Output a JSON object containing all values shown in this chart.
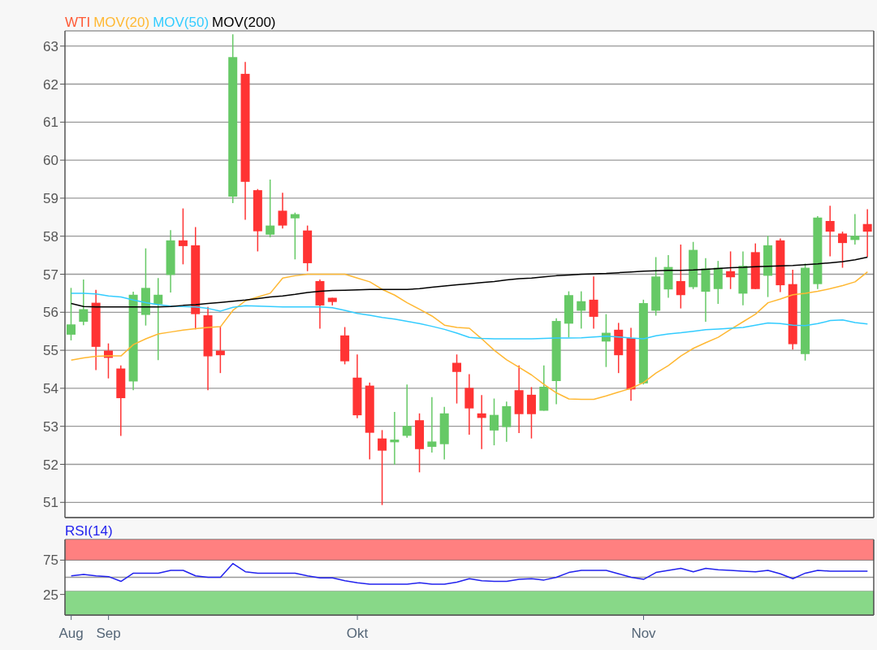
{
  "chart_data": [
    {
      "type": "candlestick",
      "categories": [
        null,
        null,
        null,
        null,
        null,
        null,
        null,
        null,
        null,
        null,
        null,
        null,
        null,
        null,
        null,
        null,
        null,
        null,
        null,
        null,
        null,
        null,
        null,
        null,
        null,
        null,
        null,
        null,
        null,
        null,
        null,
        null,
        null,
        null,
        null,
        null,
        null,
        null,
        null,
        null,
        null,
        null,
        null,
        null,
        null,
        null,
        null,
        null,
        null,
        null,
        null,
        null,
        null,
        null,
        null,
        null,
        null,
        null,
        null,
        null,
        null,
        null,
        null,
        null,
        null
      ],
      "ylim": [
        50.6,
        63.4
      ],
      "yticks": [
        51,
        52,
        53,
        54,
        55,
        56,
        57,
        58,
        59,
        60,
        61,
        62,
        63
      ],
      "grid": "y",
      "legend": "top left",
      "tick_labels": "y",
      "series": [
        {
          "name": "WTI",
          "type": "candlestick",
          "color": "#ff5a36",
          "ohlc": [
            [
              55.41,
              56.64,
              55.26,
              55.68
            ],
            [
              55.75,
              56.86,
              55.66,
              56.08
            ],
            [
              56.25,
              56.59,
              54.48,
              55.09
            ],
            [
              54.99,
              55.18,
              54.26,
              54.8
            ],
            [
              54.52,
              54.6,
              52.75,
              53.74
            ],
            [
              54.18,
              56.54,
              53.95,
              56.46
            ],
            [
              55.93,
              57.68,
              55.65,
              56.64
            ],
            [
              56.21,
              56.9,
              54.74,
              56.46
            ],
            [
              56.98,
              58.16,
              56.52,
              57.89
            ],
            [
              57.89,
              58.73,
              57.26,
              57.74
            ],
            [
              57.76,
              58.24,
              55.55,
              55.95
            ],
            [
              55.92,
              56.14,
              53.95,
              54.84
            ],
            [
              54.99,
              55.63,
              54.4,
              54.87
            ],
            [
              59.04,
              63.31,
              58.87,
              62.71
            ],
            [
              62.27,
              62.58,
              58.43,
              59.43
            ],
            [
              59.21,
              59.24,
              57.6,
              58.13
            ],
            [
              58.04,
              59.49,
              57.97,
              58.28
            ],
            [
              58.67,
              59.14,
              58.2,
              58.28
            ],
            [
              58.47,
              58.62,
              57.39,
              58.58
            ],
            [
              58.15,
              58.28,
              57.08,
              57.29
            ],
            [
              56.82,
              56.86,
              55.57,
              56.18
            ],
            [
              56.38,
              56.38,
              56.18,
              56.27
            ],
            [
              55.39,
              55.61,
              54.63,
              54.71
            ],
            [
              54.28,
              54.89,
              53.21,
              53.29
            ],
            [
              54.07,
              54.15,
              52.13,
              52.83
            ],
            [
              52.68,
              52.9,
              50.93,
              52.36
            ],
            [
              52.58,
              53.38,
              51.99,
              52.65
            ],
            [
              52.75,
              54.1,
              52.7,
              53.01
            ],
            [
              53.16,
              53.34,
              51.79,
              52.4
            ],
            [
              52.46,
              53.77,
              52.31,
              52.6
            ],
            [
              52.53,
              53.51,
              52.13,
              53.34
            ],
            [
              54.67,
              54.89,
              53.6,
              54.43
            ],
            [
              54.01,
              54.37,
              52.78,
              53.47
            ],
            [
              53.34,
              53.82,
              52.4,
              53.22
            ],
            [
              52.89,
              53.73,
              52.5,
              53.3
            ],
            [
              52.98,
              53.65,
              52.59,
              53.53
            ],
            [
              53.95,
              54.6,
              52.82,
              53.32
            ],
            [
              53.83,
              54.03,
              52.68,
              53.32
            ],
            [
              53.41,
              54.6,
              53.41,
              54.04
            ],
            [
              54.19,
              55.84,
              53.58,
              55.77
            ],
            [
              55.7,
              56.55,
              55.34,
              56.45
            ],
            [
              56.04,
              56.55,
              55.57,
              56.29
            ],
            [
              56.33,
              56.94,
              55.57,
              55.88
            ],
            [
              55.23,
              55.95,
              54.56,
              55.46
            ],
            [
              55.54,
              55.72,
              54.4,
              54.87
            ],
            [
              55.32,
              55.59,
              53.67,
              53.97
            ],
            [
              54.13,
              56.33,
              54.1,
              56.24
            ],
            [
              56.04,
              57.45,
              55.91,
              56.94
            ],
            [
              56.6,
              57.5,
              56.38,
              57.19
            ],
            [
              56.82,
              57.78,
              56.1,
              56.45
            ],
            [
              56.66,
              57.85,
              56.61,
              57.64
            ],
            [
              56.54,
              57.42,
              55.75,
              57.15
            ],
            [
              56.61,
              57.35,
              56.22,
              57.17
            ],
            [
              57.08,
              57.6,
              56.61,
              56.92
            ],
            [
              56.49,
              57.6,
              56.18,
              57.22
            ],
            [
              57.58,
              57.81,
              56.61,
              56.61
            ],
            [
              56.96,
              58.01,
              56.4,
              57.76
            ],
            [
              57.89,
              57.94,
              56.53,
              56.71
            ],
            [
              56.74,
              57.12,
              55.02,
              55.16
            ],
            [
              54.9,
              57.28,
              54.73,
              57.17
            ],
            [
              56.74,
              58.53,
              56.61,
              58.49
            ],
            [
              58.4,
              58.8,
              57.47,
              58.12
            ],
            [
              58.07,
              58.12,
              57.17,
              57.82
            ],
            [
              57.9,
              58.58,
              57.78,
              58.01
            ],
            [
              58.32,
              58.71,
              57.46,
              58.12
            ]
          ],
          "colors": [
            "#66c966",
            "#66c966",
            "#ff3333",
            "#ff3333",
            "#ff3333",
            "#66c966",
            "#66c966",
            "#66c966",
            "#66c966",
            "#ff3333",
            "#ff3333",
            "#ff3333",
            "#ff3333",
            "#66c966",
            "#ff3333",
            "#ff3333",
            "#66c966",
            "#ff3333",
            "#66c966",
            "#ff3333",
            "#ff3333",
            "#ff3333",
            "#ff3333",
            "#ff3333",
            "#ff3333",
            "#ff3333",
            "#66c966",
            "#66c966",
            "#ff3333",
            "#66c966",
            "#66c966",
            "#ff3333",
            "#ff3333",
            "#ff3333",
            "#66c966",
            "#66c966",
            "#ff3333",
            "#ff3333",
            "#66c966",
            "#66c966",
            "#66c966",
            "#66c966",
            "#ff3333",
            "#66c966",
            "#ff3333",
            "#ff3333",
            "#66c966",
            "#66c966",
            "#66c966",
            "#ff3333",
            "#66c966",
            "#66c966",
            "#66c966",
            "#ff3333",
            "#66c966",
            "#ff3333",
            "#66c966",
            "#ff3333",
            "#ff3333",
            "#66c966",
            "#66c966",
            "#ff3333",
            "#ff3333",
            "#66c966",
            "#ff3333"
          ]
        },
        {
          "name": "MOV(20)",
          "type": "line",
          "color": "#ffb833",
          "values": [
            54.74,
            54.8,
            54.84,
            54.85,
            54.85,
            55.15,
            55.3,
            55.43,
            55.48,
            55.53,
            55.57,
            55.6,
            55.62,
            56.05,
            56.3,
            56.4,
            56.5,
            56.9,
            56.96,
            57.0,
            57.0,
            57.0,
            57.0,
            56.9,
            56.8,
            56.6,
            56.45,
            56.25,
            56.08,
            55.9,
            55.66,
            55.6,
            55.58,
            55.3,
            55.0,
            54.75,
            54.55,
            54.35,
            54.1,
            53.88,
            53.72,
            53.71,
            53.71,
            53.8,
            53.9,
            54.0,
            54.15,
            54.4,
            54.6,
            54.85,
            55.05,
            55.2,
            55.34,
            55.55,
            55.75,
            55.95,
            56.25,
            56.35,
            56.46,
            56.5,
            56.55,
            56.62,
            56.7,
            56.8,
            57.06
          ]
        },
        {
          "name": "MOV(50)",
          "type": "line",
          "color": "#33ccff",
          "values": [
            56.5,
            56.5,
            56.48,
            56.43,
            56.4,
            56.32,
            56.25,
            56.2,
            56.16,
            56.15,
            56.14,
            56.1,
            56.03,
            56.13,
            56.17,
            56.16,
            56.15,
            56.14,
            56.14,
            56.14,
            56.14,
            56.12,
            56.05,
            55.97,
            55.92,
            55.86,
            55.82,
            55.76,
            55.7,
            55.63,
            55.55,
            55.45,
            55.34,
            55.31,
            55.3,
            55.3,
            55.3,
            55.3,
            55.31,
            55.32,
            55.32,
            55.33,
            55.35,
            55.37,
            55.35,
            55.32,
            55.3,
            55.38,
            55.43,
            55.46,
            55.5,
            55.54,
            55.56,
            55.58,
            55.6,
            55.66,
            55.72,
            55.7,
            55.66,
            55.65,
            55.7,
            55.78,
            55.8,
            55.73,
            55.69
          ]
        },
        {
          "name": "MOV(200)",
          "type": "line",
          "color": "#000000",
          "values": [
            56.23,
            56.15,
            56.14,
            56.14,
            56.14,
            56.14,
            56.14,
            56.14,
            56.15,
            56.18,
            56.2,
            56.23,
            56.26,
            56.29,
            56.32,
            56.36,
            56.4,
            56.43,
            56.47,
            56.52,
            56.55,
            56.57,
            56.58,
            56.59,
            56.6,
            56.6,
            56.6,
            56.6,
            56.62,
            56.66,
            56.69,
            56.72,
            56.75,
            56.78,
            56.81,
            56.85,
            56.88,
            56.9,
            56.93,
            56.96,
            56.98,
            57.0,
            57.01,
            57.02,
            57.04,
            57.06,
            57.08,
            57.09,
            57.1,
            57.1,
            57.11,
            57.13,
            57.15,
            57.17,
            57.18,
            57.2,
            57.21,
            57.22,
            57.23,
            57.25,
            57.27,
            57.3,
            57.33,
            57.38,
            57.45
          ]
        }
      ]
    },
    {
      "type": "line",
      "categories": [
        "Aug",
        null,
        null,
        "Sep",
        null,
        null,
        null,
        null,
        null,
        null,
        null,
        null,
        null,
        null,
        null,
        null,
        null,
        null,
        null,
        null,
        null,
        null,
        null,
        "Okt",
        null,
        null,
        null,
        null,
        null,
        null,
        null,
        null,
        null,
        null,
        null,
        null,
        null,
        null,
        null,
        null,
        null,
        null,
        null,
        null,
        null,
        null,
        "Nov",
        null,
        null,
        null,
        null,
        null,
        null,
        null,
        null,
        null,
        null,
        null,
        null,
        null,
        null,
        null,
        null,
        null,
        null
      ],
      "ylim": [
        -5,
        105
      ],
      "yticks": [
        25,
        75
      ],
      "grid": "y",
      "legend": "top left",
      "bands": [
        {
          "axis": "y",
          "from": 75,
          "to": 105,
          "color": "#ff8080"
        },
        {
          "axis": "y",
          "from": -5,
          "to": 30,
          "color": "#88d888"
        }
      ],
      "ref_lines": [
        {
          "axis": "y",
          "value": 50,
          "color": "#999999"
        }
      ],
      "series": [
        {
          "name": "RSI(14)",
          "color": "#2222ee",
          "values": [
            52,
            54,
            52,
            51,
            44,
            56,
            56,
            56,
            60,
            60,
            52,
            50,
            50,
            70,
            58,
            56,
            56,
            56,
            56,
            52,
            49,
            49,
            45,
            42,
            40,
            40,
            40,
            40,
            42,
            40,
            40,
            43,
            48,
            45,
            44,
            44,
            47,
            48,
            46,
            50,
            57,
            60,
            60,
            60,
            55,
            50,
            47,
            57,
            60,
            63,
            58,
            63,
            61,
            60,
            59,
            58,
            60,
            55,
            48,
            56,
            60,
            59,
            59,
            59,
            59
          ]
        }
      ]
    }
  ]
}
